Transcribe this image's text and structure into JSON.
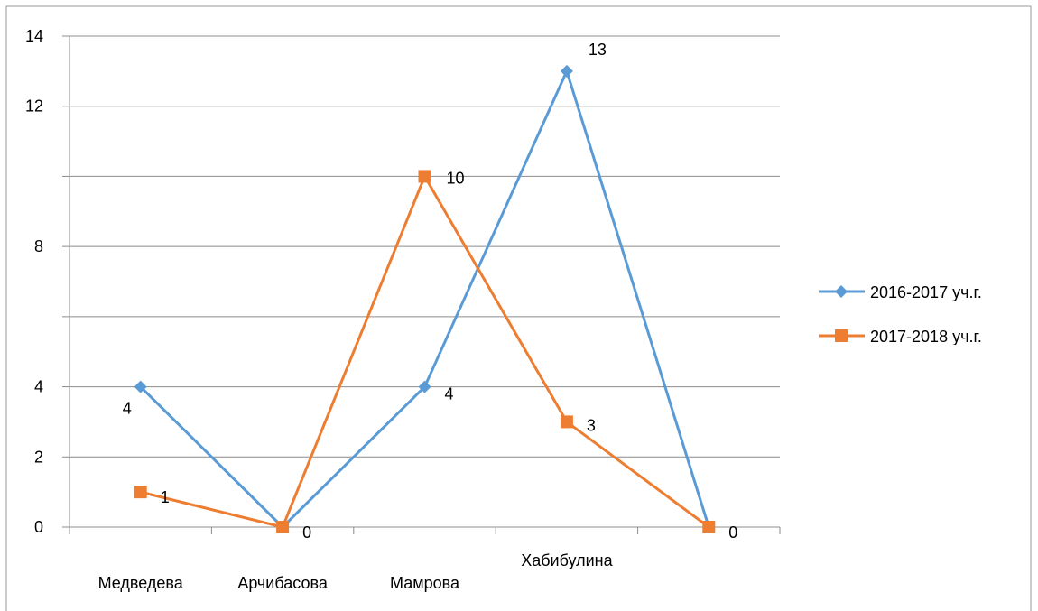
{
  "chart_data": {
    "type": "line",
    "categories": [
      "Медведева",
      "Арчибасова",
      "Мамрова",
      "Хабибулина",
      ""
    ],
    "y_ticks": [
      "0",
      "2",
      "4",
      "",
      "8",
      "",
      "12",
      "14"
    ],
    "ylim": [
      0,
      14
    ],
    "grid": true,
    "legend": "right",
    "series": [
      {
        "name": "2016-2017 уч.г.",
        "values": [
          4,
          0,
          4,
          13,
          0
        ],
        "labels": [
          "4",
          "",
          "4",
          "13",
          ""
        ],
        "color": "#5b9bd5",
        "marker": "diamond"
      },
      {
        "name": "2017-2018 уч.г.",
        "values": [
          1,
          0,
          10,
          3,
          0
        ],
        "labels": [
          "1",
          "0",
          "10",
          "3",
          "0"
        ],
        "color": "#ed7d31",
        "marker": "square"
      }
    ]
  }
}
